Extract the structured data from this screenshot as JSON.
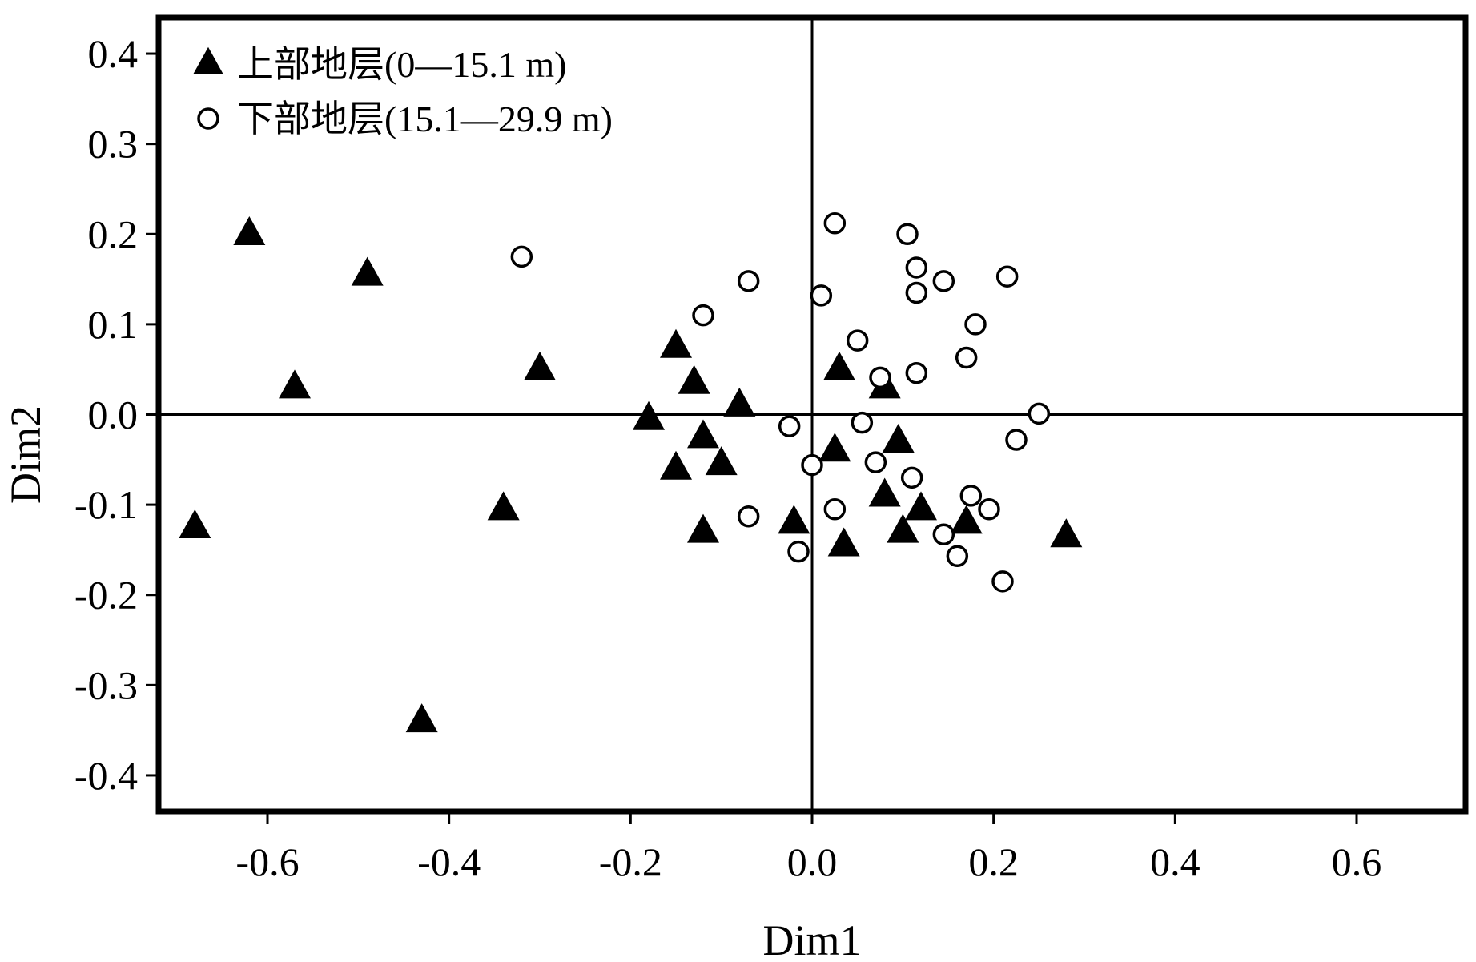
{
  "chart_data": {
    "type": "scatter",
    "title": "",
    "xlabel": "Dim1",
    "ylabel": "Dim2",
    "xlim": [
      -0.72,
      0.72
    ],
    "ylim": [
      -0.44,
      0.44
    ],
    "xticks": [
      -0.6,
      -0.4,
      -0.2,
      0.0,
      0.2,
      0.4,
      0.6
    ],
    "yticks": [
      0.4,
      0.3,
      0.2,
      0.1,
      0.0,
      -0.1,
      -0.2,
      -0.3,
      -0.4
    ],
    "xtick_labels": [
      "-0.6",
      "-0.4",
      "-0.2",
      "0.0",
      "0.2",
      "0.4",
      "0.6"
    ],
    "ytick_labels": [
      "0.4",
      "0.3",
      "0.2",
      "0.1",
      "0.0",
      "-0.1",
      "-0.2",
      "-0.3",
      "-0.4"
    ],
    "reference_lines": {
      "x": 0,
      "y": 0
    },
    "grid": false,
    "legend_position": "top-left",
    "series": [
      {
        "name": "上部地层(0—15.1 m)",
        "marker": "filled-triangle",
        "color": "#000000",
        "points": [
          [
            -0.62,
            0.2
          ],
          [
            -0.49,
            0.155
          ],
          [
            -0.57,
            0.03
          ],
          [
            -0.68,
            -0.125
          ],
          [
            -0.3,
            0.05
          ],
          [
            -0.34,
            -0.105
          ],
          [
            -0.43,
            -0.34
          ],
          [
            -0.15,
            0.075
          ],
          [
            -0.13,
            0.035
          ],
          [
            -0.08,
            0.01
          ],
          [
            -0.18,
            -0.005
          ],
          [
            -0.12,
            -0.025
          ],
          [
            -0.15,
            -0.06
          ],
          [
            -0.1,
            -0.055
          ],
          [
            -0.12,
            -0.13
          ],
          [
            -0.02,
            -0.12
          ],
          [
            0.03,
            0.05
          ],
          [
            0.08,
            0.03
          ],
          [
            0.025,
            -0.04
          ],
          [
            0.095,
            -0.03
          ],
          [
            0.08,
            -0.09
          ],
          [
            0.035,
            -0.145
          ],
          [
            0.1,
            -0.13
          ],
          [
            0.12,
            -0.105
          ],
          [
            0.17,
            -0.12
          ],
          [
            0.28,
            -0.135
          ]
        ]
      },
      {
        "name": "下部地层(15.1—29.9 m)",
        "marker": "open-circle",
        "color": "#000000",
        "points": [
          [
            -0.32,
            0.175
          ],
          [
            -0.07,
            0.148
          ],
          [
            -0.12,
            0.11
          ],
          [
            0.025,
            0.212
          ],
          [
            0.01,
            0.132
          ],
          [
            0.05,
            0.082
          ],
          [
            0.105,
            0.2
          ],
          [
            0.115,
            0.163
          ],
          [
            0.145,
            0.148
          ],
          [
            0.115,
            0.135
          ],
          [
            0.215,
            0.153
          ],
          [
            0.18,
            0.1
          ],
          [
            0.17,
            0.063
          ],
          [
            0.115,
            0.046
          ],
          [
            0.075,
            0.041
          ],
          [
            0.25,
            0.001
          ],
          [
            -0.025,
            -0.013
          ],
          [
            0.055,
            -0.009
          ],
          [
            0.225,
            -0.028
          ],
          [
            0.0,
            -0.056
          ],
          [
            0.07,
            -0.053
          ],
          [
            0.11,
            -0.07
          ],
          [
            0.175,
            -0.09
          ],
          [
            0.195,
            -0.105
          ],
          [
            0.025,
            -0.105
          ],
          [
            -0.07,
            -0.113
          ],
          [
            0.145,
            -0.133
          ],
          [
            0.16,
            -0.157
          ],
          [
            -0.015,
            -0.152
          ],
          [
            0.21,
            -0.185
          ]
        ]
      }
    ]
  }
}
